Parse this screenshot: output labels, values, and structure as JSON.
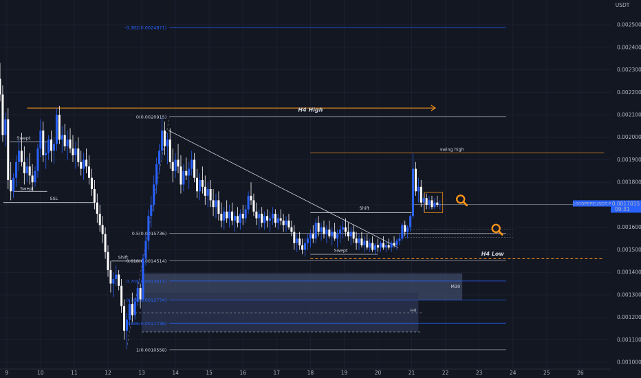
{
  "chart_data": {
    "type": "candlestick",
    "currency": "USDT",
    "symbol_label": "1000PEPEUSDT.P",
    "last_price_label": "0.0017015",
    "countdown_label": "09:31",
    "y_range": [
      0.00097,
      0.00261
    ],
    "x_range": [
      8.8,
      26.9
    ],
    "y_ticks": [
      "0.0010000",
      "0.0011000",
      "0.0012000",
      "0.0013000",
      "0.0014000",
      "0.0015000",
      "0.0016000",
      "0.0017000",
      "0.0018000",
      "0.0019000",
      "0.0020000",
      "0.0021000",
      "0.0022000",
      "0.0023000",
      "0.0024000",
      "0.0025000"
    ],
    "x_ticks": [
      "9",
      "10",
      "11",
      "12",
      "13",
      "14",
      "15",
      "16",
      "17",
      "18",
      "19",
      "20",
      "21",
      "22",
      "23",
      "24",
      "25",
      "26"
    ],
    "fib_levels": [
      {
        "label": "-0.382(0.0024871)",
        "price": 0.0024871
      },
      {
        "label": "0(0.0020915)",
        "price": 0.0020915
      },
      {
        "label": "0.5(0.0015736)",
        "price": 0.0015736
      },
      {
        "label": "0.618(0.0014514)",
        "price": 0.0014514
      },
      {
        "label": "0.705(0.0013613)",
        "price": 0.0013613
      },
      {
        "label": "0.786(0.0012774)",
        "price": 0.0012774
      },
      {
        "label": "0.886(0.0011738)",
        "price": 0.0011738
      },
      {
        "label": "1(0.0010558)",
        "price": 0.0010558
      }
    ],
    "annotations": {
      "h4_high": "H4 High",
      "h4_low": "H4 Low",
      "swing_high": "swing high",
      "shift": "Shift",
      "swept": "Swept",
      "ssl": "SSL",
      "m30": "M30",
      "h4": "H4"
    },
    "colors": {
      "up_candle": "#2962ff",
      "down_candle": "#ffffff",
      "fib": "#2962ff",
      "orange": "#f7931a",
      "background": "#131722"
    },
    "ohlc_key": [
      "day",
      "open",
      "high",
      "low",
      "close"
    ],
    "candles": [
      [
        8.8,
        0.00226,
        0.00233,
        0.00216,
        0.00219
      ],
      [
        8.88,
        0.00219,
        0.00223,
        0.00198,
        0.00201
      ],
      [
        8.96,
        0.00201,
        0.00211,
        0.00196,
        0.00208
      ],
      [
        9.04,
        0.00208,
        0.00213,
        0.00177,
        0.00181
      ],
      [
        9.12,
        0.00181,
        0.00189,
        0.00172,
        0.00176
      ],
      [
        9.2,
        0.00176,
        0.00184,
        0.00173,
        0.00182
      ],
      [
        9.28,
        0.00182,
        0.00192,
        0.00178,
        0.00189
      ],
      [
        9.36,
        0.00189,
        0.00199,
        0.00185,
        0.00194
      ],
      [
        9.44,
        0.00194,
        0.00202,
        0.00187,
        0.00189
      ],
      [
        9.52,
        0.00189,
        0.00196,
        0.00179,
        0.00184
      ],
      [
        9.6,
        0.00184,
        0.00191,
        0.0018,
        0.00187
      ],
      [
        9.68,
        0.00187,
        0.00193,
        0.00179,
        0.00183
      ],
      [
        9.76,
        0.00183,
        0.00188,
        0.00176,
        0.0018
      ],
      [
        9.84,
        0.0018,
        0.00187,
        0.00178,
        0.00185
      ],
      [
        9.92,
        0.00185,
        0.00197,
        0.00182,
        0.00195
      ],
      [
        10.0,
        0.00195,
        0.00208,
        0.00191,
        0.00203
      ],
      [
        10.08,
        0.00203,
        0.00207,
        0.00189,
        0.00192
      ],
      [
        10.16,
        0.00192,
        0.00198,
        0.00186,
        0.00193
      ],
      [
        10.24,
        0.00193,
        0.00201,
        0.0019,
        0.00199
      ],
      [
        10.32,
        0.00199,
        0.00203,
        0.00189,
        0.00194
      ],
      [
        10.4,
        0.00194,
        0.002,
        0.00188,
        0.00197
      ],
      [
        10.48,
        0.00197,
        0.00213,
        0.00194,
        0.0021
      ],
      [
        10.56,
        0.0021,
        0.00214,
        0.00197,
        0.00199
      ],
      [
        10.64,
        0.00199,
        0.00205,
        0.00193,
        0.00201
      ],
      [
        10.72,
        0.00201,
        0.00206,
        0.00194,
        0.00196
      ],
      [
        10.8,
        0.00196,
        0.00203,
        0.0019,
        0.00199
      ],
      [
        10.88,
        0.00199,
        0.00204,
        0.00193,
        0.00195
      ],
      [
        10.96,
        0.00195,
        0.00201,
        0.00189,
        0.00192
      ],
      [
        11.04,
        0.00192,
        0.00198,
        0.00186,
        0.00195
      ],
      [
        11.12,
        0.00195,
        0.002,
        0.00187,
        0.00189
      ],
      [
        11.2,
        0.00189,
        0.00194,
        0.00183,
        0.00186
      ],
      [
        11.28,
        0.00186,
        0.00193,
        0.00181,
        0.0019
      ],
      [
        11.36,
        0.0019,
        0.00195,
        0.00184,
        0.00187
      ],
      [
        11.44,
        0.00187,
        0.00192,
        0.00179,
        0.00182
      ],
      [
        11.52,
        0.00182,
        0.00186,
        0.00174,
        0.00177
      ],
      [
        11.6,
        0.00177,
        0.00181,
        0.00168,
        0.00171
      ],
      [
        11.68,
        0.00171,
        0.00175,
        0.00162,
        0.00166
      ],
      [
        11.76,
        0.00166,
        0.0017,
        0.00158,
        0.00161
      ],
      [
        11.84,
        0.00161,
        0.00165,
        0.00153,
        0.00157
      ],
      [
        11.92,
        0.00157,
        0.0016,
        0.00146,
        0.00149
      ],
      [
        12.0,
        0.00149,
        0.00152,
        0.00138,
        0.00141
      ],
      [
        12.08,
        0.00141,
        0.00145,
        0.00131,
        0.00135
      ],
      [
        12.16,
        0.00135,
        0.0014,
        0.00129,
        0.00137
      ],
      [
        12.24,
        0.00137,
        0.00143,
        0.00134,
        0.00139
      ],
      [
        12.32,
        0.00139,
        0.00141,
        0.00132,
        0.00134
      ],
      [
        12.4,
        0.00134,
        0.00137,
        0.00122,
        0.00125
      ],
      [
        12.48,
        0.00125,
        0.00128,
        0.0011,
        0.00114
      ],
      [
        12.56,
        0.00114,
        0.00122,
        0.00106,
        0.00119
      ],
      [
        12.64,
        0.00119,
        0.00128,
        0.00116,
        0.00126
      ],
      [
        12.72,
        0.00126,
        0.00131,
        0.00118,
        0.00121
      ],
      [
        12.8,
        0.00121,
        0.00129,
        0.00119,
        0.00127
      ],
      [
        12.88,
        0.00127,
        0.00136,
        0.00125,
        0.00133
      ],
      [
        12.96,
        0.00133,
        0.00135,
        0.00124,
        0.00128
      ],
      [
        13.04,
        0.00128,
        0.00148,
        0.00127,
        0.00146
      ],
      [
        13.12,
        0.00146,
        0.00157,
        0.00143,
        0.00154
      ],
      [
        13.2,
        0.00154,
        0.00168,
        0.0015,
        0.00165
      ],
      [
        13.28,
        0.00165,
        0.00174,
        0.0016,
        0.0017
      ],
      [
        13.36,
        0.0017,
        0.00183,
        0.00167,
        0.00179
      ],
      [
        13.44,
        0.00179,
        0.00191,
        0.00175,
        0.00188
      ],
      [
        13.52,
        0.00188,
        0.00197,
        0.00184,
        0.00194
      ],
      [
        13.6,
        0.00194,
        0.00209,
        0.0019,
        0.00203
      ],
      [
        13.68,
        0.00203,
        0.00207,
        0.00192,
        0.00196
      ],
      [
        13.76,
        0.00196,
        0.00202,
        0.00188,
        0.00199
      ],
      [
        13.84,
        0.00199,
        0.00204,
        0.00186,
        0.00189
      ],
      [
        13.92,
        0.00189,
        0.00195,
        0.0018,
        0.00185
      ],
      [
        14.0,
        0.00185,
        0.00193,
        0.00182,
        0.0019
      ],
      [
        14.08,
        0.0019,
        0.00197,
        0.00184,
        0.00187
      ],
      [
        14.16,
        0.00187,
        0.00192,
        0.00175,
        0.00179
      ],
      [
        14.24,
        0.00179,
        0.00188,
        0.00176,
        0.00185
      ],
      [
        14.32,
        0.00185,
        0.00191,
        0.00181,
        0.00183
      ],
      [
        14.4,
        0.00183,
        0.00189,
        0.00177,
        0.00186
      ],
      [
        14.48,
        0.00186,
        0.00194,
        0.00183,
        0.0019
      ],
      [
        14.56,
        0.0019,
        0.00193,
        0.0018,
        0.00182
      ],
      [
        14.64,
        0.00182,
        0.00186,
        0.00173,
        0.00176
      ],
      [
        14.72,
        0.00176,
        0.00184,
        0.00172,
        0.00181
      ],
      [
        14.8,
        0.00181,
        0.00187,
        0.00175,
        0.00178
      ],
      [
        14.88,
        0.00178,
        0.00183,
        0.0017,
        0.00174
      ],
      [
        14.96,
        0.00174,
        0.0018,
        0.00169,
        0.00177
      ],
      [
        15.04,
        0.00177,
        0.00181,
        0.00169,
        0.00172
      ],
      [
        15.12,
        0.00172,
        0.00177,
        0.00165,
        0.00169
      ],
      [
        15.2,
        0.00169,
        0.00175,
        0.00164,
        0.00172
      ],
      [
        15.28,
        0.00172,
        0.00176,
        0.00163,
        0.00166
      ],
      [
        15.36,
        0.00166,
        0.00171,
        0.0016,
        0.00163
      ],
      [
        15.44,
        0.00163,
        0.00169,
        0.00159,
        0.00167
      ],
      [
        15.52,
        0.00167,
        0.00172,
        0.00162,
        0.00164
      ],
      [
        15.6,
        0.00164,
        0.0017,
        0.0016,
        0.00167
      ],
      [
        15.68,
        0.00167,
        0.00171,
        0.00161,
        0.00163
      ],
      [
        15.76,
        0.00163,
        0.00167,
        0.00158,
        0.00165
      ],
      [
        15.84,
        0.00165,
        0.00169,
        0.0016,
        0.00162
      ],
      [
        15.92,
        0.00162,
        0.00168,
        0.00159,
        0.00166
      ],
      [
        16.0,
        0.00166,
        0.0017,
        0.00161,
        0.00164
      ],
      [
        16.08,
        0.00164,
        0.0017,
        0.00162,
        0.00168
      ],
      [
        16.16,
        0.00168,
        0.00176,
        0.00166,
        0.00174
      ],
      [
        16.24,
        0.00174,
        0.0018,
        0.0017,
        0.00172
      ],
      [
        16.32,
        0.00172,
        0.00175,
        0.00165,
        0.00167
      ],
      [
        16.4,
        0.00167,
        0.00171,
        0.00161,
        0.00164
      ],
      [
        16.48,
        0.00164,
        0.00168,
        0.00159,
        0.00166
      ],
      [
        16.56,
        0.00166,
        0.00169,
        0.0016,
        0.00162
      ],
      [
        16.64,
        0.00162,
        0.00167,
        0.00159,
        0.00165
      ],
      [
        16.72,
        0.00165,
        0.00168,
        0.0016,
        0.00163
      ],
      [
        16.8,
        0.00163,
        0.00167,
        0.00158,
        0.00164
      ],
      [
        16.88,
        0.00164,
        0.00169,
        0.00161,
        0.00166
      ],
      [
        16.96,
        0.00166,
        0.00168,
        0.0016,
        0.00162
      ],
      [
        17.04,
        0.00162,
        0.00166,
        0.00159,
        0.00164
      ],
      [
        17.12,
        0.00164,
        0.00168,
        0.00161,
        0.00163
      ],
      [
        17.2,
        0.00163,
        0.00166,
        0.00158,
        0.00161
      ],
      [
        17.28,
        0.00161,
        0.00165,
        0.00158,
        0.00163
      ],
      [
        17.36,
        0.00163,
        0.00166,
        0.00159,
        0.0016
      ],
      [
        17.44,
        0.0016,
        0.00163,
        0.00156,
        0.00158
      ],
      [
        17.52,
        0.00158,
        0.00161,
        0.0015,
        0.00153
      ],
      [
        17.6,
        0.00153,
        0.00157,
        0.00149,
        0.00155
      ],
      [
        17.68,
        0.00155,
        0.00158,
        0.0015,
        0.00152
      ],
      [
        17.76,
        0.00152,
        0.00155,
        0.00148,
        0.0015
      ],
      [
        17.84,
        0.0015,
        0.00155,
        0.00147,
        0.00153
      ],
      [
        17.92,
        0.00153,
        0.00157,
        0.0015,
        0.00155
      ],
      [
        18.0,
        0.00155,
        0.00159,
        0.00151,
        0.00157
      ],
      [
        18.08,
        0.00157,
        0.00161,
        0.00153,
        0.00155
      ],
      [
        18.16,
        0.00155,
        0.00164,
        0.00153,
        0.00162
      ],
      [
        18.24,
        0.00162,
        0.00165,
        0.00156,
        0.00158
      ],
      [
        18.32,
        0.00158,
        0.00162,
        0.00154,
        0.0016
      ],
      [
        18.4,
        0.0016,
        0.00163,
        0.00155,
        0.00157
      ],
      [
        18.48,
        0.00157,
        0.00161,
        0.00153,
        0.00159
      ],
      [
        18.56,
        0.00159,
        0.00163,
        0.00155,
        0.00156
      ],
      [
        18.64,
        0.00156,
        0.0016,
        0.00152,
        0.00158
      ],
      [
        18.72,
        0.00158,
        0.00162,
        0.00154,
        0.00155
      ],
      [
        18.8,
        0.00155,
        0.00159,
        0.00151,
        0.00157
      ],
      [
        18.88,
        0.00157,
        0.00161,
        0.00153,
        0.00159
      ],
      [
        18.96,
        0.00159,
        0.00163,
        0.00155,
        0.0016
      ],
      [
        19.04,
        0.0016,
        0.00164,
        0.00156,
        0.00158
      ],
      [
        19.12,
        0.00158,
        0.00162,
        0.00154,
        0.00156
      ],
      [
        19.2,
        0.00156,
        0.0016,
        0.00152,
        0.00158
      ],
      [
        19.28,
        0.00158,
        0.00161,
        0.00153,
        0.00155
      ],
      [
        19.36,
        0.00155,
        0.00158,
        0.0015,
        0.00153
      ],
      [
        19.44,
        0.00153,
        0.00157,
        0.0015,
        0.00155
      ],
      [
        19.52,
        0.00155,
        0.00158,
        0.00151,
        0.00152
      ],
      [
        19.6,
        0.00152,
        0.00156,
        0.00149,
        0.00154
      ],
      [
        19.68,
        0.00154,
        0.00157,
        0.0015,
        0.00151
      ],
      [
        19.76,
        0.00151,
        0.00155,
        0.00149,
        0.00153
      ],
      [
        19.84,
        0.00153,
        0.00156,
        0.00149,
        0.0015
      ],
      [
        19.92,
        0.0015,
        0.00153,
        0.00148,
        0.00152
      ],
      [
        20.0,
        0.00152,
        0.00155,
        0.00149,
        0.00151
      ],
      [
        20.08,
        0.00151,
        0.00154,
        0.00149,
        0.00153
      ],
      [
        20.16,
        0.00153,
        0.00156,
        0.0015,
        0.00151
      ],
      [
        20.24,
        0.00151,
        0.00154,
        0.00149,
        0.00152
      ],
      [
        20.32,
        0.00152,
        0.00155,
        0.0015,
        0.00151
      ],
      [
        20.4,
        0.00151,
        0.00154,
        0.00149,
        0.00153
      ],
      [
        20.48,
        0.00153,
        0.00156,
        0.00151,
        0.00152
      ],
      [
        20.56,
        0.00152,
        0.00155,
        0.0015,
        0.00154
      ],
      [
        20.64,
        0.00154,
        0.00157,
        0.00152,
        0.00155
      ],
      [
        20.72,
        0.00155,
        0.00162,
        0.00154,
        0.00161
      ],
      [
        20.8,
        0.00161,
        0.00163,
        0.00156,
        0.00158
      ],
      [
        20.88,
        0.00158,
        0.00161,
        0.00155,
        0.0016
      ],
      [
        20.96,
        0.0016,
        0.00166,
        0.00158,
        0.00165
      ],
      [
        21.04,
        0.00165,
        0.00193,
        0.00164,
        0.00186
      ],
      [
        21.12,
        0.00186,
        0.00189,
        0.00174,
        0.00176
      ],
      [
        21.2,
        0.00176,
        0.00182,
        0.00171,
        0.00178
      ],
      [
        21.28,
        0.00178,
        0.00181,
        0.00169,
        0.00171
      ],
      [
        21.36,
        0.00171,
        0.00175,
        0.00167,
        0.00173
      ],
      [
        21.44,
        0.00173,
        0.00175,
        0.00168,
        0.0017
      ],
      [
        21.52,
        0.0017,
        0.00174,
        0.00168,
        0.00172
      ],
      [
        21.6,
        0.00172,
        0.00174,
        0.00168,
        0.00169
      ],
      [
        21.68,
        0.00169,
        0.00173,
        0.00168,
        0.00171
      ],
      [
        21.76,
        0.00171,
        0.00174,
        0.00169,
        0.0017
      ],
      [
        21.84,
        0.0017,
        0.00172,
        0.00168,
        0.0017
      ]
    ]
  }
}
